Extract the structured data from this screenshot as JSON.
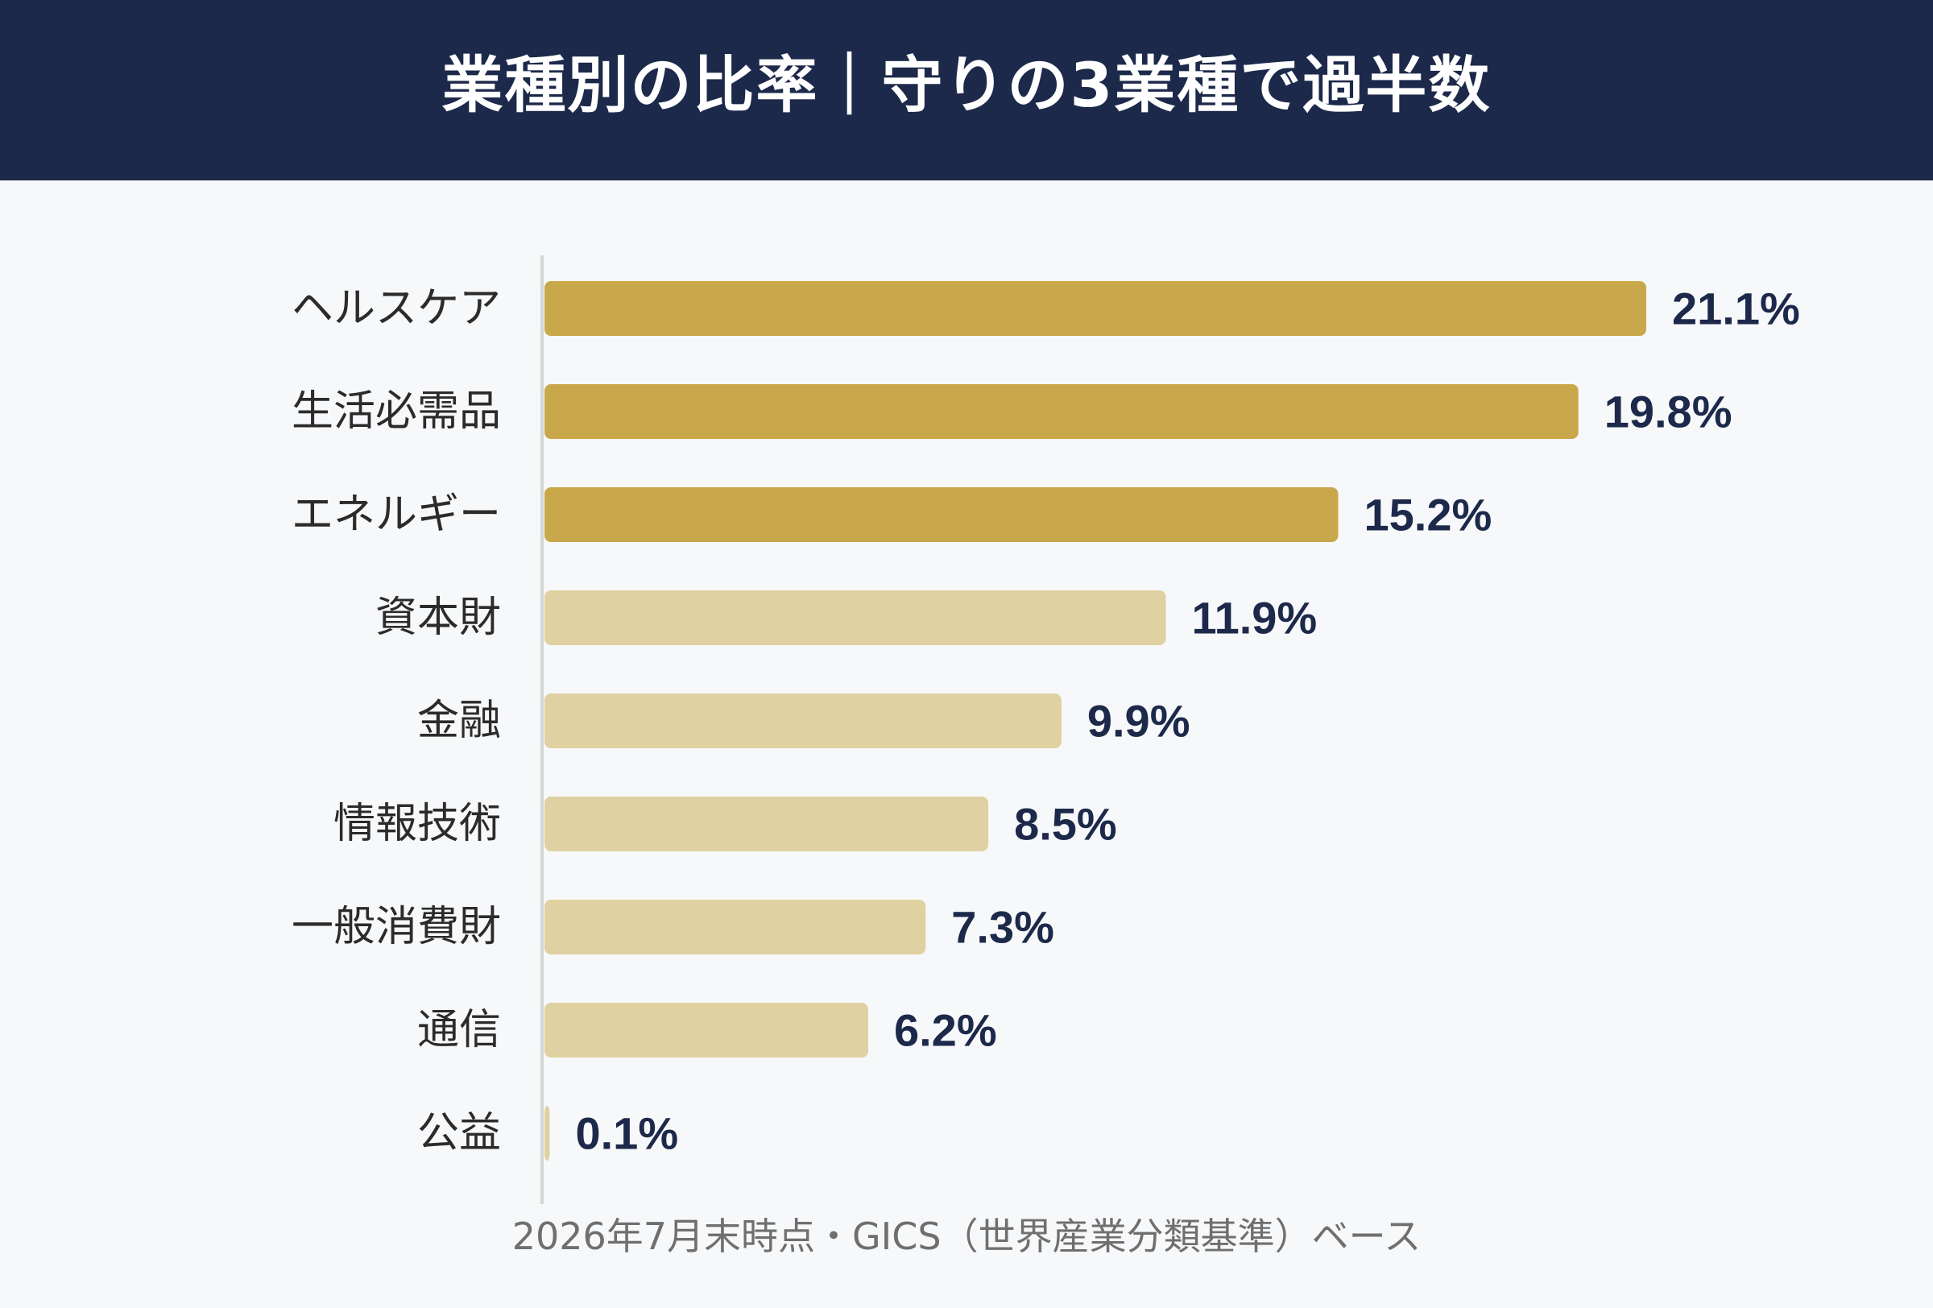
{
  "header": {
    "title": "業種別の比率｜守りの3業種で過半数"
  },
  "footnote": "2026年7月末時点・GICS（世界産業分類基準）ベース",
  "colors": {
    "header_bg": "#1c294a",
    "highlight_bar": "#c9a84c",
    "normal_bar": "#e0d1a2",
    "value_label": "#1c294a",
    "category_label": "#2b2b2b",
    "axis_line": "#d6d6d6"
  },
  "chart_data": {
    "type": "bar",
    "orientation": "horizontal",
    "categories": [
      "ヘルスケア",
      "生活必需品",
      "エネルギー",
      "資本財",
      "金融",
      "情報技術",
      "一般消費財",
      "通信",
      "公益"
    ],
    "values": [
      21.1,
      19.8,
      15.2,
      11.9,
      9.9,
      8.5,
      7.3,
      6.2,
      0.1
    ],
    "value_labels": [
      "21.1%",
      "19.8%",
      "15.2%",
      "11.9%",
      "9.9%",
      "8.5%",
      "7.3%",
      "6.2%",
      "0.1%"
    ],
    "highlighted": [
      true,
      true,
      true,
      false,
      false,
      false,
      false,
      false,
      false
    ],
    "unit": "%",
    "xlim": [
      0,
      21.1
    ],
    "grid": false,
    "legend": "none"
  }
}
